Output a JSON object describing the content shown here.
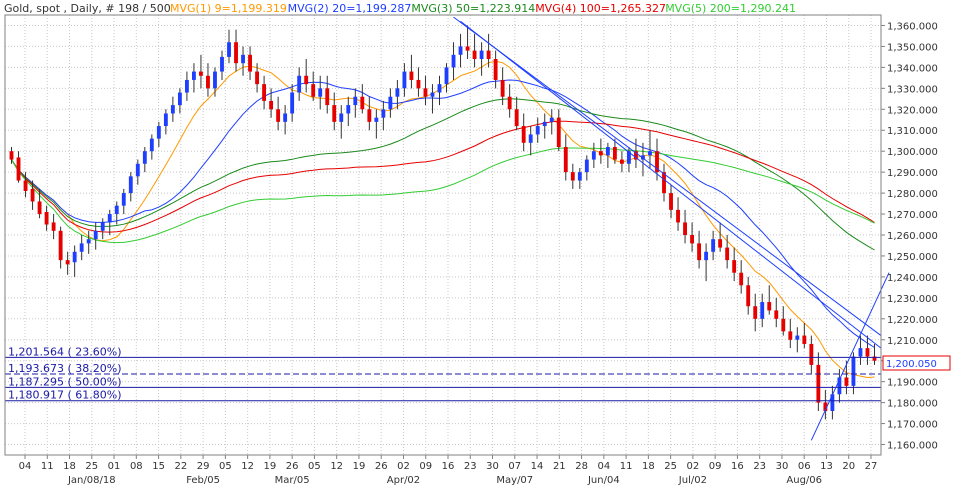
{
  "header": {
    "instrument": "Gold, spot , Daily, # 198 / 500",
    "indicators": [
      {
        "label": "MVG(1) 9=1,199.319",
        "color": "#ff9900"
      },
      {
        "label": "MVG(2) 20=1,199.287",
        "color": "#1f3fff"
      },
      {
        "label": "MVG(3) 50=1,223.914",
        "color": "#1b8a1b"
      },
      {
        "label": "MVG(4) 100=1,265.327",
        "color": "#e60000"
      },
      {
        "label": "MVG(5) 200=1,290.241",
        "color": "#33cc33"
      }
    ]
  },
  "price_tag": "1,200.050",
  "fib_labels": [
    {
      "text": "1,201.564 ( 23.60%)",
      "value": 1201.564
    },
    {
      "text": "1,193.673 ( 38.20%)",
      "value": 1193.673
    },
    {
      "text": "1,187.295 ( 50.00%)",
      "value": 1187.295
    },
    {
      "text": "1,180.917 ( 61.80%)",
      "value": 1180.917
    }
  ],
  "colors": {
    "up": "#1f3fff",
    "down": "#e60000",
    "grid": "#c8c8c8",
    "fib": "#1a1aa6",
    "trend": "#1f3fff"
  },
  "chart_data": {
    "type": "candlestick",
    "ylim": [
      1155,
      1365
    ],
    "y_ticks": [
      1360,
      1350,
      1340,
      1330,
      1320,
      1310,
      1300,
      1290,
      1280,
      1270,
      1260,
      1250,
      1240,
      1230,
      1220,
      1210,
      1200,
      1190,
      1180,
      1170,
      1160
    ],
    "y_tick_labels": [
      "1,360.000",
      "1,350.000",
      "1,340.000",
      "1,330.000",
      "1,320.000",
      "1,310.000",
      "1,300.000",
      "1,290.000",
      "1,280.000",
      "1,270.000",
      "1,260.000",
      "1,250.000",
      "1,240.000",
      "1,230.000",
      "1,220.000",
      "1,210.000",
      "1,200.000",
      "1,190.000",
      "1,180.000",
      "1,170.000",
      "1,160.000"
    ],
    "x_ticks": [
      "04",
      "11",
      "18",
      "25",
      "01",
      "08",
      "15",
      "22",
      "29",
      "05",
      "12",
      "19",
      "26",
      "05",
      "12",
      "19",
      "26",
      "02",
      "09",
      "16",
      "23",
      "30",
      "07",
      "14",
      "21",
      "28",
      "04",
      "11",
      "18",
      "25",
      "02",
      "09",
      "16",
      "23",
      "30",
      "06",
      "13",
      "20",
      "27"
    ],
    "month_labels": [
      "Jan/08/18",
      "Feb/05",
      "Mar/05",
      "Apr/02",
      "May/07",
      "Jun/04",
      "Jul/02",
      "Aug/06"
    ],
    "ohlc": [
      [
        1300,
        1302,
        1294,
        1296
      ],
      [
        1297,
        1300,
        1285,
        1286
      ],
      [
        1286,
        1290,
        1278,
        1281
      ],
      [
        1282,
        1286,
        1272,
        1276
      ],
      [
        1276,
        1282,
        1268,
        1270
      ],
      [
        1271,
        1274,
        1262,
        1265
      ],
      [
        1266,
        1270,
        1258,
        1262
      ],
      [
        1262,
        1264,
        1244,
        1248
      ],
      [
        1248,
        1252,
        1241,
        1246
      ],
      [
        1247,
        1255,
        1240,
        1252
      ],
      [
        1252,
        1260,
        1248,
        1256
      ],
      [
        1256,
        1262,
        1251,
        1258
      ],
      [
        1258,
        1266,
        1253,
        1262
      ],
      [
        1262,
        1268,
        1258,
        1266
      ],
      [
        1266,
        1272,
        1260,
        1270
      ],
      [
        1270,
        1276,
        1265,
        1274
      ],
      [
        1274,
        1282,
        1270,
        1280
      ],
      [
        1280,
        1290,
        1276,
        1288
      ],
      [
        1288,
        1296,
        1284,
        1294
      ],
      [
        1294,
        1302,
        1290,
        1300
      ],
      [
        1300,
        1308,
        1296,
        1306
      ],
      [
        1306,
        1314,
        1302,
        1312
      ],
      [
        1312,
        1320,
        1308,
        1318
      ],
      [
        1318,
        1326,
        1314,
        1322
      ],
      [
        1322,
        1330,
        1318,
        1328
      ],
      [
        1328,
        1338,
        1324,
        1334
      ],
      [
        1334,
        1342,
        1328,
        1338
      ],
      [
        1338,
        1346,
        1330,
        1336
      ],
      [
        1336,
        1342,
        1326,
        1330
      ],
      [
        1330,
        1340,
        1326,
        1338
      ],
      [
        1338,
        1348,
        1334,
        1345
      ],
      [
        1345,
        1358,
        1342,
        1352
      ],
      [
        1352,
        1358,
        1338,
        1342
      ],
      [
        1342,
        1350,
        1336,
        1346
      ],
      [
        1346,
        1350,
        1334,
        1338
      ],
      [
        1338,
        1342,
        1328,
        1332
      ],
      [
        1332,
        1336,
        1320,
        1324
      ],
      [
        1324,
        1330,
        1316,
        1320
      ],
      [
        1320,
        1326,
        1310,
        1314
      ],
      [
        1314,
        1322,
        1308,
        1318
      ],
      [
        1318,
        1332,
        1314,
        1328
      ],
      [
        1328,
        1340,
        1324,
        1336
      ],
      [
        1336,
        1344,
        1328,
        1332
      ],
      [
        1332,
        1338,
        1324,
        1326
      ],
      [
        1326,
        1336,
        1320,
        1330
      ],
      [
        1330,
        1336,
        1318,
        1322
      ],
      [
        1322,
        1328,
        1310,
        1314
      ],
      [
        1314,
        1322,
        1306,
        1318
      ],
      [
        1318,
        1326,
        1312,
        1322
      ],
      [
        1322,
        1330,
        1316,
        1326
      ],
      [
        1326,
        1332,
        1318,
        1320
      ],
      [
        1320,
        1326,
        1310,
        1314
      ],
      [
        1314,
        1320,
        1306,
        1316
      ],
      [
        1316,
        1324,
        1310,
        1320
      ],
      [
        1320,
        1330,
        1316,
        1326
      ],
      [
        1326,
        1334,
        1320,
        1330
      ],
      [
        1330,
        1342,
        1326,
        1338
      ],
      [
        1338,
        1346,
        1330,
        1334
      ],
      [
        1334,
        1340,
        1326,
        1330
      ],
      [
        1330,
        1336,
        1322,
        1326
      ],
      [
        1326,
        1332,
        1318,
        1328
      ],
      [
        1328,
        1336,
        1322,
        1332
      ],
      [
        1332,
        1342,
        1328,
        1340
      ],
      [
        1340,
        1352,
        1334,
        1346
      ],
      [
        1346,
        1356,
        1340,
        1350
      ],
      [
        1350,
        1360,
        1344,
        1348
      ],
      [
        1348,
        1356,
        1340,
        1344
      ],
      [
        1344,
        1352,
        1336,
        1348
      ],
      [
        1348,
        1356,
        1340,
        1344
      ],
      [
        1344,
        1348,
        1330,
        1334
      ],
      [
        1334,
        1340,
        1322,
        1326
      ],
      [
        1326,
        1332,
        1316,
        1320
      ],
      [
        1320,
        1326,
        1310,
        1312
      ],
      [
        1312,
        1318,
        1300,
        1304
      ],
      [
        1304,
        1312,
        1298,
        1308
      ],
      [
        1308,
        1316,
        1304,
        1312
      ],
      [
        1312,
        1318,
        1306,
        1314
      ],
      [
        1314,
        1320,
        1308,
        1316
      ],
      [
        1316,
        1320,
        1300,
        1302
      ],
      [
        1302,
        1308,
        1286,
        1290
      ],
      [
        1290,
        1294,
        1282,
        1286
      ],
      [
        1286,
        1292,
        1282,
        1290
      ],
      [
        1290,
        1298,
        1286,
        1296
      ],
      [
        1296,
        1304,
        1292,
        1300
      ],
      [
        1300,
        1306,
        1294,
        1298
      ],
      [
        1298,
        1304,
        1292,
        1302
      ],
      [
        1302,
        1306,
        1294,
        1296
      ],
      [
        1296,
        1300,
        1290,
        1294
      ],
      [
        1294,
        1302,
        1290,
        1300
      ],
      [
        1300,
        1306,
        1292,
        1296
      ],
      [
        1296,
        1304,
        1288,
        1298
      ],
      [
        1298,
        1310,
        1292,
        1300
      ],
      [
        1300,
        1306,
        1286,
        1290
      ],
      [
        1290,
        1294,
        1276,
        1280
      ],
      [
        1280,
        1284,
        1268,
        1272
      ],
      [
        1272,
        1278,
        1262,
        1266
      ],
      [
        1266,
        1272,
        1256,
        1260
      ],
      [
        1260,
        1266,
        1252,
        1256
      ],
      [
        1256,
        1262,
        1244,
        1248
      ],
      [
        1248,
        1256,
        1238,
        1252
      ],
      [
        1252,
        1262,
        1248,
        1258
      ],
      [
        1258,
        1266,
        1252,
        1254
      ],
      [
        1254,
        1260,
        1244,
        1248
      ],
      [
        1248,
        1254,
        1238,
        1242
      ],
      [
        1242,
        1248,
        1232,
        1236
      ],
      [
        1236,
        1240,
        1222,
        1226
      ],
      [
        1226,
        1232,
        1214,
        1220
      ],
      [
        1220,
        1232,
        1216,
        1228
      ],
      [
        1228,
        1236,
        1222,
        1224
      ],
      [
        1224,
        1230,
        1216,
        1220
      ],
      [
        1220,
        1226,
        1212,
        1214
      ],
      [
        1214,
        1220,
        1206,
        1210
      ],
      [
        1210,
        1216,
        1204,
        1212
      ],
      [
        1212,
        1218,
        1206,
        1208
      ],
      [
        1208,
        1212,
        1194,
        1198
      ],
      [
        1198,
        1204,
        1176,
        1180
      ],
      [
        1180,
        1186,
        1172,
        1176
      ],
      [
        1176,
        1188,
        1172,
        1184
      ],
      [
        1184,
        1196,
        1180,
        1192
      ],
      [
        1192,
        1200,
        1184,
        1188
      ],
      [
        1188,
        1204,
        1184,
        1202
      ],
      [
        1202,
        1212,
        1198,
        1206
      ],
      [
        1206,
        1212,
        1198,
        1202
      ],
      [
        1202,
        1208,
        1198,
        1200
      ]
    ]
  }
}
